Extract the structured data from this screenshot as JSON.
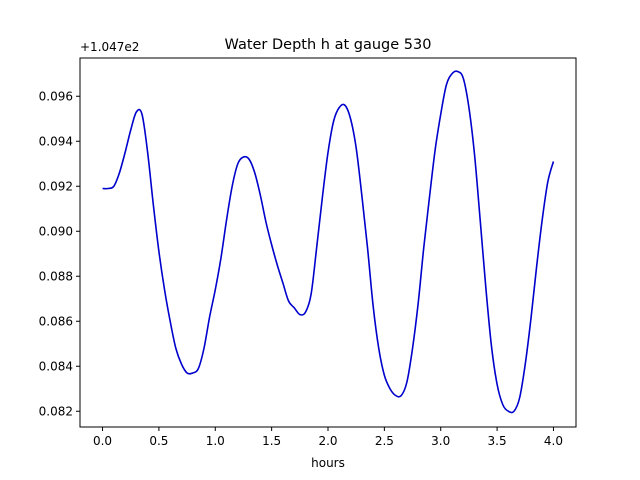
{
  "chart_data": {
    "type": "line",
    "title": "Water Depth h at gauge 530",
    "xlabel": "hours",
    "ylabel": "",
    "y_offset_label": "+1.047e2",
    "xlim": [
      -0.2,
      4.2
    ],
    "ylim": [
      0.0813,
      0.0977
    ],
    "x_ticks": [
      0.0,
      0.5,
      1.0,
      1.5,
      2.0,
      2.5,
      3.0,
      3.5,
      4.0
    ],
    "x_tick_labels": [
      "0.0",
      "0.5",
      "1.0",
      "1.5",
      "2.0",
      "2.5",
      "3.0",
      "3.5",
      "4.0"
    ],
    "y_ticks": [
      0.082,
      0.084,
      0.086,
      0.088,
      0.09,
      0.092,
      0.094,
      0.096
    ],
    "y_tick_labels": [
      "0.082",
      "0.084",
      "0.086",
      "0.088",
      "0.090",
      "0.092",
      "0.094",
      "0.096"
    ],
    "grid": false,
    "series": [
      {
        "name": "",
        "color": "#0000cc",
        "x": [
          0.0,
          0.05,
          0.1,
          0.15,
          0.2,
          0.25,
          0.3,
          0.35,
          0.4,
          0.45,
          0.5,
          0.55,
          0.6,
          0.65,
          0.7,
          0.75,
          0.8,
          0.85,
          0.9,
          0.95,
          1.0,
          1.05,
          1.1,
          1.15,
          1.2,
          1.25,
          1.3,
          1.35,
          1.4,
          1.45,
          1.5,
          1.55,
          1.6,
          1.65,
          1.7,
          1.75,
          1.8,
          1.85,
          1.9,
          1.95,
          2.0,
          2.05,
          2.1,
          2.15,
          2.2,
          2.25,
          2.3,
          2.35,
          2.4,
          2.45,
          2.5,
          2.55,
          2.6,
          2.65,
          2.7,
          2.75,
          2.8,
          2.85,
          2.9,
          2.95,
          3.0,
          3.05,
          3.1,
          3.15,
          3.2,
          3.25,
          3.3,
          3.35,
          3.4,
          3.45,
          3.5,
          3.55,
          3.6,
          3.65,
          3.7,
          3.75,
          3.8,
          3.85,
          3.9,
          3.95,
          4.0
        ],
        "y": [
          0.0919,
          0.0919,
          0.092,
          0.0926,
          0.0935,
          0.0945,
          0.0953,
          0.0952,
          0.0935,
          0.0912,
          0.0891,
          0.0874,
          0.086,
          0.0848,
          0.0841,
          0.0837,
          0.0837,
          0.0839,
          0.0848,
          0.0862,
          0.0874,
          0.0888,
          0.0905,
          0.092,
          0.093,
          0.0933,
          0.0932,
          0.0926,
          0.0916,
          0.0904,
          0.0894,
          0.0885,
          0.0877,
          0.0869,
          0.0866,
          0.0863,
          0.0864,
          0.0872,
          0.0893,
          0.0915,
          0.0935,
          0.0949,
          0.0955,
          0.0956,
          0.095,
          0.0937,
          0.0916,
          0.0893,
          0.0867,
          0.0848,
          0.0836,
          0.083,
          0.0827,
          0.0827,
          0.0833,
          0.0848,
          0.0868,
          0.0893,
          0.0915,
          0.0936,
          0.0952,
          0.0965,
          0.097,
          0.0971,
          0.0968,
          0.0955,
          0.0934,
          0.0905,
          0.0875,
          0.0849,
          0.0832,
          0.0823,
          0.082,
          0.082,
          0.0826,
          0.0841,
          0.0861,
          0.0884,
          0.0905,
          0.0922,
          0.0931
        ]
      }
    ]
  }
}
